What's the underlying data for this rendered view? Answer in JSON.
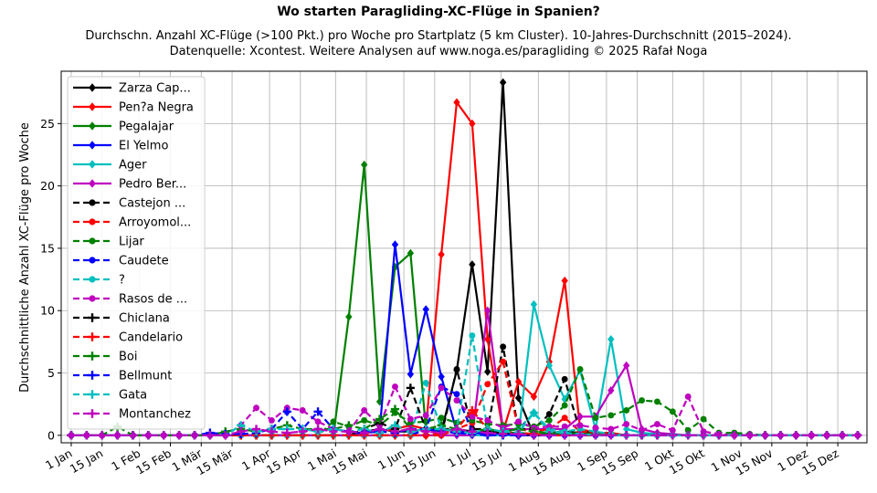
{
  "chart_data": {
    "type": "line",
    "title": "Wo starten Paragliding-XC-Flüge in Spanien?",
    "subtitle_line1": "Durchschn. Anzahl XC-Flüge (>100 Pkt.) pro Woche pro Startplatz (5 km Cluster). 10-Jahres-Durchschnitt (2015–2024).",
    "subtitle_line2": "Datenquelle: Xcontest. Weitere Analysen auf www.noga.es/paragliding © 2025 Rafał Noga",
    "ylabel": "Durchschnittliche Anzahl XC-Flüge pro Woche",
    "xlabel": "",
    "ylim": [
      -0.6,
      29.2
    ],
    "yticks": [
      0,
      5,
      10,
      15,
      20,
      25
    ],
    "xticks": [
      {
        "label": "1 Jan",
        "week": 0
      },
      {
        "label": "15 Jan",
        "week": 2
      },
      {
        "label": "1 Feb",
        "week": 4.43
      },
      {
        "label": "15 Feb",
        "week": 6.43
      },
      {
        "label": "1 Mär",
        "week": 8.43
      },
      {
        "label": "15 Mär",
        "week": 10.43
      },
      {
        "label": "1 Apr",
        "week": 12.86
      },
      {
        "label": "15 Apr",
        "week": 14.86
      },
      {
        "label": "1 Mai",
        "week": 17.14
      },
      {
        "label": "15 Mai",
        "week": 19.14
      },
      {
        "label": "1 Jun",
        "week": 21.57
      },
      {
        "label": "15 Jun",
        "week": 23.57
      },
      {
        "label": "1 Jul",
        "week": 25.86
      },
      {
        "label": "15 Jul",
        "week": 27.86
      },
      {
        "label": "1 Aug",
        "week": 30.29
      },
      {
        "label": "15 Aug",
        "week": 32.29
      },
      {
        "label": "1 Sep",
        "week": 34.71
      },
      {
        "label": "15 Sep",
        "week": 36.71
      },
      {
        "label": "1 Okt",
        "week": 39
      },
      {
        "label": "15 Okt",
        "week": 41
      },
      {
        "label": "1 Nov",
        "week": 43.43
      },
      {
        "label": "15 Nov",
        "week": 45.43
      },
      {
        "label": "1 Dez",
        "week": 47.71
      },
      {
        "label": "15 Dez",
        "week": 49.71
      }
    ],
    "legend_position": "top-left",
    "grid": true,
    "x_weeks": [
      0,
      1,
      2,
      3,
      4,
      5,
      6,
      7,
      8,
      9,
      10,
      11,
      12,
      13,
      14,
      15,
      16,
      17,
      18,
      19,
      20,
      21,
      22,
      23,
      24,
      25,
      26,
      27,
      28,
      29,
      30,
      31,
      32,
      33,
      34,
      35,
      36,
      37,
      38,
      39,
      40,
      41,
      42,
      43,
      44,
      45,
      46,
      47,
      48,
      49,
      50,
      51
    ],
    "series": [
      {
        "name": "Zarza Cap...",
        "color": "#000000",
        "dash": "solid",
        "marker": "diamond",
        "values": [
          0,
          0,
          0,
          0,
          0,
          0,
          0,
          0,
          0,
          0,
          0,
          0,
          0,
          0,
          0,
          0,
          0,
          0,
          0,
          0.3,
          0.5,
          0.3,
          0.3,
          0.5,
          0.3,
          5.2,
          13.7,
          5.1,
          28.3,
          3,
          0,
          0.2,
          0.3,
          0.2,
          0.2,
          0.1,
          0,
          0,
          0,
          0,
          0,
          0,
          0,
          0,
          0,
          0,
          0,
          0,
          0,
          0,
          0,
          0
        ]
      },
      {
        "name": "Pen?a Negra",
        "color": "#ff0000",
        "dash": "solid",
        "marker": "diamond",
        "values": [
          0,
          0,
          0,
          0,
          0,
          0,
          0,
          0,
          0,
          0,
          0,
          0,
          0,
          0,
          0,
          0,
          0,
          0,
          0,
          0.2,
          0.3,
          0.5,
          0.8,
          0.5,
          14.5,
          26.7,
          25,
          7.7,
          0.3,
          4.3,
          3.1,
          5.9,
          12.4,
          0.5,
          0.2,
          0.2,
          0,
          0,
          0,
          0,
          0,
          0,
          0,
          0,
          0,
          0,
          0,
          0,
          0,
          0,
          0,
          0
        ]
      },
      {
        "name": "Pegalajar",
        "color": "#008000",
        "dash": "solid",
        "marker": "diamond",
        "values": [
          0,
          0,
          0,
          0,
          0,
          0,
          0,
          0,
          0,
          0,
          0,
          0,
          0,
          0,
          0,
          0,
          0,
          0,
          9.5,
          21.7,
          2.7,
          13.5,
          14.6,
          0.5,
          0.3,
          0.5,
          0.3,
          0.3,
          0.2,
          0.2,
          0.1,
          0.1,
          0.1,
          0.2,
          0.1,
          0,
          0,
          0,
          0,
          0,
          0,
          0,
          0,
          0,
          0,
          0,
          0,
          0,
          0,
          0,
          0,
          0
        ]
      },
      {
        "name": "El Yelmo",
        "color": "#0000ff",
        "dash": "solid",
        "marker": "diamond",
        "values": [
          0,
          0,
          0,
          0,
          0,
          0,
          0,
          0,
          0,
          0,
          0,
          0,
          0,
          0,
          0,
          0,
          0,
          0,
          0,
          0.3,
          0.3,
          15.3,
          4.9,
          10.1,
          4.7,
          0.3,
          0.2,
          0.1,
          0.1,
          0.1,
          0,
          0,
          0,
          0,
          0,
          0,
          0,
          0,
          0,
          0,
          0,
          0,
          0,
          0,
          0,
          0,
          0,
          0,
          0,
          0,
          0,
          0
        ]
      },
      {
        "name": "Ager",
        "color": "#00bfbf",
        "dash": "solid",
        "marker": "diamond",
        "values": [
          0,
          0,
          0,
          0,
          0,
          0,
          0,
          0,
          0,
          0,
          0,
          0,
          0,
          0,
          0,
          0,
          0,
          0,
          0,
          0,
          0,
          0,
          0,
          0,
          0,
          0,
          0,
          0,
          0,
          0,
          10.5,
          5.6,
          2.9,
          5.2,
          0.5,
          7.7,
          0.5,
          0.2,
          0.1,
          0,
          0,
          0,
          0,
          0,
          0,
          0,
          0,
          0,
          0,
          0,
          0,
          0
        ]
      },
      {
        "name": "Pedro Ber...",
        "color": "#bf00bf",
        "dash": "solid",
        "marker": "diamond",
        "values": [
          0,
          0,
          0,
          0,
          0,
          0,
          0,
          0,
          0,
          0,
          0,
          0,
          0,
          0,
          0,
          0,
          0,
          0,
          0,
          0,
          0,
          0,
          0,
          0,
          0,
          0,
          0,
          10,
          0.5,
          0.5,
          0.5,
          0.5,
          0.5,
          1.5,
          1.5,
          3.6,
          5.6,
          0.5,
          0.2,
          0.1,
          0,
          0,
          0,
          0,
          0,
          0,
          0,
          0,
          0,
          0,
          0,
          0
        ]
      },
      {
        "name": "Castejon ...",
        "color": "#000000",
        "dash": "dashed",
        "marker": "circle",
        "values": [
          0,
          0,
          0,
          0,
          0,
          0,
          0,
          0,
          0,
          0,
          0,
          0,
          0,
          0,
          0,
          0,
          0,
          0,
          0,
          0,
          0,
          0,
          0,
          0,
          0,
          5.3,
          0.5,
          0.5,
          7.1,
          0.5,
          0.5,
          1.7,
          4.5,
          0.3,
          0.2,
          0.1,
          0,
          0,
          0,
          0,
          0,
          0,
          0,
          0,
          0,
          0,
          0,
          0,
          0,
          0,
          0,
          0
        ]
      },
      {
        "name": "Arroyomol...",
        "color": "#ff0000",
        "dash": "dashed",
        "marker": "circle",
        "values": [
          0,
          0,
          0,
          0,
          0,
          0,
          0,
          0,
          0,
          0,
          0,
          0,
          0,
          0,
          0,
          0,
          0,
          0,
          0,
          0,
          0,
          0,
          0,
          0,
          0,
          0.5,
          1,
          4.1,
          5.9,
          0.5,
          0.3,
          0.5,
          1.4,
          0.3,
          0.2,
          0.1,
          0,
          0,
          0,
          0,
          0,
          0,
          0,
          0,
          0,
          0,
          0,
          0,
          0,
          0,
          0,
          0
        ]
      },
      {
        "name": "Lijar",
        "color": "#008000",
        "dash": "dashed",
        "marker": "circle",
        "values": [
          0,
          0,
          0,
          0,
          0,
          0,
          0,
          0,
          0,
          0,
          0,
          0,
          0,
          0,
          0,
          0,
          0,
          1.1,
          0.7,
          1.2,
          0.8,
          1.8,
          1,
          1.1,
          1.4,
          1,
          1.2,
          0.9,
          0.8,
          0.9,
          0.7,
          1.2,
          2.4,
          5.3,
          1.4,
          1.6,
          2,
          2.8,
          2.7,
          1.9,
          0.4,
          1.3,
          0.2,
          0.2,
          0.1,
          0,
          0,
          0,
          0,
          0,
          0,
          0
        ]
      },
      {
        "name": "Caudete",
        "color": "#0000ff",
        "dash": "dashed",
        "marker": "circle",
        "values": [
          0,
          0,
          0,
          0,
          0,
          0,
          0,
          0,
          0,
          0,
          0,
          0,
          0,
          0,
          0,
          0,
          0,
          0,
          0,
          0,
          0,
          0,
          0,
          0.5,
          3.9,
          3.3,
          0.3,
          0.2,
          0.1,
          0,
          0,
          0,
          0,
          0,
          0,
          0,
          0,
          0,
          0,
          0,
          0,
          0,
          0,
          0,
          0,
          0,
          0,
          0,
          0,
          0,
          0,
          0
        ]
      },
      {
        "name": "?",
        "color": "#00bfbf",
        "dash": "dashed",
        "marker": "circle",
        "values": [
          0,
          0,
          0,
          0,
          0,
          0,
          0,
          0,
          0,
          0,
          0,
          0,
          0,
          0,
          0,
          0,
          0,
          0,
          0,
          0,
          0,
          0,
          0,
          4.2,
          0.5,
          0.5,
          8,
          0.5,
          0.3,
          0.5,
          1.8,
          0.5,
          0.3,
          0.5,
          0.3,
          0.1,
          0,
          0,
          0,
          0,
          0,
          0,
          0,
          0,
          0,
          0,
          0,
          0,
          0,
          0,
          0,
          0
        ]
      },
      {
        "name": "Rasos de ...",
        "color": "#bf00bf",
        "dash": "dashed",
        "marker": "circle",
        "values": [
          0,
          0,
          0,
          0,
          0,
          0,
          0,
          0,
          0,
          0,
          0,
          0.8,
          2.2,
          1.2,
          2.2,
          2,
          1.1,
          0.5,
          0.3,
          2,
          0.8,
          3.9,
          1.3,
          1.6,
          3.8,
          2.8,
          1.5,
          1.2,
          0.6,
          1.1,
          0.6,
          0.7,
          0.7,
          0.8,
          0.6,
          0.5,
          0.9,
          0.4,
          0.9,
          0.4,
          3.1,
          0.3,
          0.1,
          0,
          0,
          0,
          0,
          0,
          0,
          0,
          0,
          0
        ]
      },
      {
        "name": "Chiclana",
        "color": "#000000",
        "dash": "dashed",
        "marker": "plus",
        "values": [
          0,
          0,
          0,
          0,
          0,
          0,
          0,
          0,
          0,
          0,
          0,
          0,
          0,
          0,
          0,
          0,
          0,
          0,
          0,
          0.5,
          1,
          0.5,
          3.8,
          0.5,
          0.5,
          0.5,
          0.3,
          0.3,
          0.2,
          0.1,
          0,
          0,
          0,
          0,
          0,
          0,
          0,
          0,
          0,
          0,
          0,
          0,
          0,
          0,
          0,
          0,
          0,
          0,
          0,
          0,
          0,
          0
        ]
      },
      {
        "name": "Candelario",
        "color": "#ff0000",
        "dash": "dashed",
        "marker": "plus",
        "values": [
          0,
          0,
          0,
          0,
          0,
          0,
          0,
          0,
          0,
          0,
          0,
          0,
          0,
          0,
          0,
          0,
          0,
          0,
          0,
          0,
          0,
          0,
          0,
          0,
          0.2,
          0.5,
          2,
          0.5,
          0.3,
          0.2,
          0.1,
          0,
          0,
          0,
          0,
          0,
          0,
          0,
          0,
          0,
          0,
          0,
          0,
          0,
          0,
          0,
          0,
          0,
          0,
          0,
          0,
          0
        ]
      },
      {
        "name": "Boi",
        "color": "#008000",
        "dash": "dashed",
        "marker": "plus",
        "values": [
          0,
          0,
          0,
          0.7,
          0,
          0,
          0,
          0,
          0,
          0,
          0.3,
          0.5,
          0.3,
          0.5,
          0.8,
          0.5,
          0.5,
          0.5,
          0.8,
          0.5,
          1.3,
          2.1,
          0.5,
          0.5,
          0.8,
          0.5,
          0.3,
          0.5,
          0.3,
          0.5,
          0.3,
          0.2,
          0.1,
          0.1,
          0,
          0,
          0,
          0,
          0,
          0,
          0,
          0,
          0,
          0,
          0,
          0,
          0,
          0,
          0,
          0,
          0,
          0
        ]
      },
      {
        "name": "Bellmunt",
        "color": "#0000ff",
        "dash": "dashed",
        "marker": "plus",
        "values": [
          0,
          0,
          0,
          0,
          0,
          0,
          0,
          0,
          0,
          0.2,
          0.1,
          0.1,
          0.2,
          0.5,
          1.9,
          0.5,
          1.9,
          0.5,
          0.3,
          0.2,
          0.3,
          0.2,
          0.5,
          0.5,
          0.3,
          0.2,
          0.1,
          0,
          0,
          0,
          0,
          0,
          0,
          0,
          0,
          0,
          0,
          0,
          0,
          0,
          0,
          0,
          0,
          0,
          0,
          0,
          0,
          0,
          0,
          0,
          0,
          0
        ]
      },
      {
        "name": "Gata",
        "color": "#00bfbf",
        "dash": "dashed",
        "marker": "plus",
        "values": [
          0,
          0,
          0,
          0,
          0,
          0,
          0,
          0,
          0,
          0,
          0,
          0.8,
          0.3,
          0.5,
          0.5,
          0.5,
          0.3,
          0.5,
          0.3,
          0.5,
          0.2,
          0.8,
          0.3,
          0.5,
          0.5,
          0.3,
          0.2,
          0.5,
          0.3,
          0.2,
          1.8,
          0.3,
          0.2,
          0.1,
          0,
          0,
          0,
          0,
          0,
          0,
          0,
          0,
          0,
          0,
          0,
          0,
          0,
          0,
          0,
          0,
          0,
          0
        ]
      },
      {
        "name": "Montanchez",
        "color": "#bf00bf",
        "dash": "dashed",
        "marker": "plus",
        "values": [
          0,
          0,
          0,
          0,
          0,
          0,
          0,
          0,
          0,
          0,
          0,
          0.3,
          0.5,
          0.3,
          0.2,
          0.3,
          0.5,
          0.3,
          0.3,
          0.2,
          0.5,
          0.3,
          0.5,
          0.3,
          0.2,
          0.5,
          0.3,
          0.2,
          0.1,
          0.1,
          0,
          0,
          0,
          0,
          0,
          0,
          0,
          0,
          0,
          0,
          0,
          0,
          0,
          0,
          0,
          0,
          0,
          0,
          0,
          0,
          0,
          0
        ]
      }
    ]
  }
}
